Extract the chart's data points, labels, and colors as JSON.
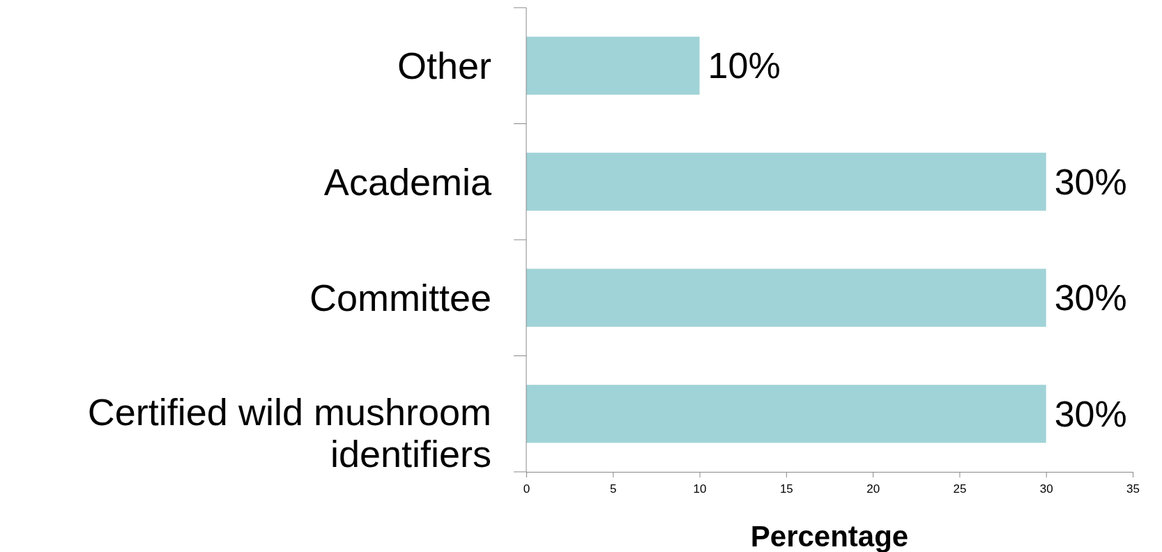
{
  "chart_data": {
    "type": "bar",
    "orientation": "horizontal",
    "xlabel": "Percentage",
    "categories": [
      "Other",
      "Academia",
      "Committee",
      "Certified wild mushroom identifiers"
    ],
    "values": [
      10,
      30,
      30,
      30
    ],
    "color": "#a0d3d7",
    "value_labels": [
      "10%",
      "30%",
      "30%",
      "30%"
    ],
    "xlim": [
      0,
      35
    ],
    "xticks": [
      0,
      5,
      10,
      15,
      20,
      25,
      30,
      35
    ]
  }
}
